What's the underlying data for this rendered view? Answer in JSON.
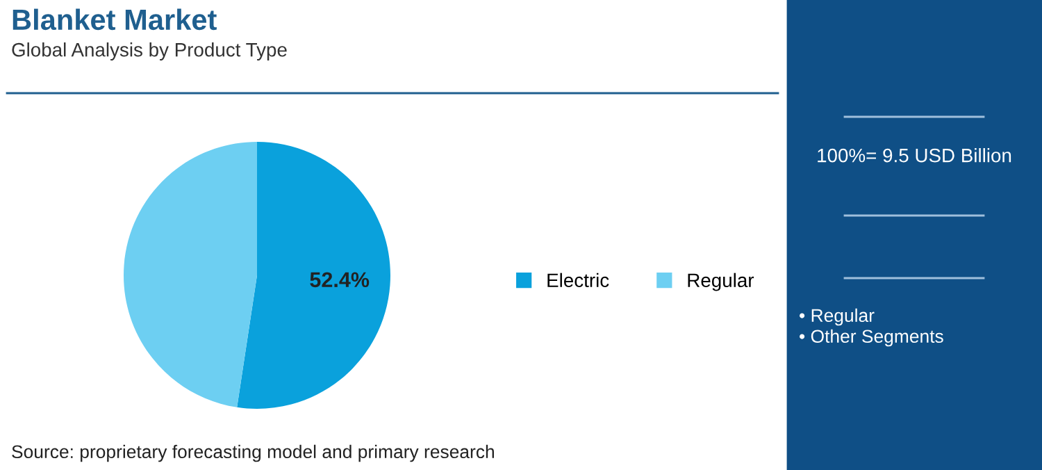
{
  "chart_data": {
    "type": "pie",
    "title": "Blanket Market",
    "subtitle": "Global Analysis by Product Type",
    "categories": [
      "Electric",
      "Regular"
    ],
    "values": [
      52.4,
      47.6
    ],
    "colors": [
      "#0aa1dc",
      "#6dcff2"
    ],
    "value_labels": [
      "52.4%",
      null
    ],
    "legend": "right",
    "annotations": [
      "Source: proprietary forecasting model and primary research",
      "100%= 9.5 USD Billion",
      "• Regular",
      "• Other Segments"
    ]
  }
}
